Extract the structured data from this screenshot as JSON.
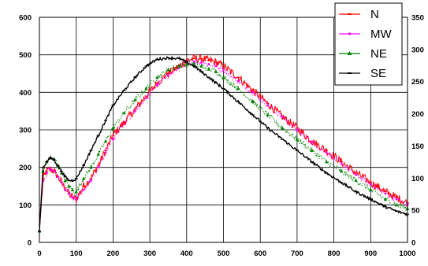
{
  "chart_data": {
    "type": "line",
    "title": "",
    "xlabel": "",
    "ylabel": "",
    "xlim": [
      0,
      1000
    ],
    "ylim": [
      0,
      600
    ],
    "y2lim": [
      0,
      350
    ],
    "grid": true,
    "legend_position": "top-right",
    "x_ticks": [
      "0",
      "100",
      "200",
      "300",
      "400",
      "500",
      "600",
      "700",
      "800",
      "900",
      "1000"
    ],
    "y_ticks": [
      "0",
      "100",
      "200",
      "300",
      "400",
      "500",
      "600"
    ],
    "y2_ticks": [
      "0",
      "50",
      "100",
      "150",
      "200",
      "250",
      "300",
      "350"
    ],
    "series": [
      {
        "name": "N",
        "color": "#ff0000",
        "marker": "dash",
        "x": [
          0,
          10,
          20,
          30,
          40,
          50,
          60,
          70,
          80,
          90,
          100,
          120,
          140,
          160,
          180,
          200,
          230,
          260,
          290,
          320,
          350,
          380,
          400,
          420,
          440,
          460,
          480,
          500,
          540,
          580,
          620,
          660,
          700,
          740,
          780,
          820,
          860,
          900,
          940,
          970,
          1000
        ],
        "y": [
          30,
          170,
          190,
          195,
          190,
          175,
          160,
          145,
          130,
          120,
          115,
          150,
          170,
          205,
          245,
          285,
          320,
          355,
          390,
          425,
          450,
          470,
          485,
          490,
          490,
          485,
          480,
          470,
          440,
          405,
          370,
          335,
          305,
          270,
          245,
          215,
          185,
          160,
          135,
          120,
          105
        ]
      },
      {
        "name": "MW",
        "color": "#ff00ff",
        "marker": "dot",
        "x": [
          0,
          10,
          20,
          30,
          40,
          50,
          60,
          70,
          80,
          90,
          100,
          120,
          140,
          160,
          180,
          200,
          230,
          260,
          290,
          320,
          350,
          380,
          400,
          420,
          440,
          460,
          480,
          500,
          540,
          580,
          620,
          660,
          700,
          740,
          780,
          820,
          860,
          900,
          940,
          970,
          1000
        ],
        "y": [
          30,
          165,
          185,
          195,
          190,
          175,
          160,
          140,
          130,
          120,
          115,
          140,
          165,
          200,
          240,
          275,
          315,
          350,
          385,
          420,
          445,
          465,
          478,
          482,
          480,
          475,
          470,
          460,
          430,
          400,
          365,
          335,
          300,
          268,
          240,
          210,
          180,
          155,
          130,
          115,
          100
        ]
      },
      {
        "name": "NE",
        "color": "#008000",
        "marker": "triangle",
        "x": [
          0,
          10,
          20,
          30,
          40,
          50,
          60,
          70,
          80,
          90,
          100,
          120,
          140,
          160,
          180,
          200,
          230,
          260,
          290,
          320,
          350,
          380,
          400,
          420,
          440,
          460,
          480,
          500,
          540,
          580,
          620,
          660,
          700,
          740,
          780,
          820,
          860,
          900,
          940,
          970,
          1000
        ],
        "y": [
          30,
          190,
          215,
          225,
          222,
          205,
          185,
          165,
          150,
          140,
          135,
          170,
          200,
          235,
          270,
          305,
          345,
          380,
          410,
          440,
          460,
          470,
          475,
          475,
          470,
          462,
          455,
          440,
          410,
          375,
          340,
          305,
          275,
          245,
          215,
          190,
          165,
          140,
          115,
          100,
          90
        ]
      },
      {
        "name": "SE",
        "color": "#000000",
        "marker": "dash",
        "x": [
          0,
          10,
          20,
          30,
          40,
          50,
          60,
          70,
          80,
          90,
          100,
          120,
          140,
          160,
          180,
          200,
          230,
          260,
          290,
          320,
          350,
          380,
          400,
          420,
          440,
          460,
          480,
          500,
          540,
          580,
          620,
          660,
          700,
          740,
          780,
          820,
          860,
          900,
          940,
          970,
          1000
        ],
        "y": [
          30,
          200,
          215,
          225,
          220,
          205,
          190,
          175,
          165,
          165,
          170,
          205,
          245,
          285,
          325,
          365,
          405,
          440,
          470,
          488,
          492,
          490,
          480,
          470,
          455,
          440,
          425,
          410,
          375,
          340,
          305,
          275,
          245,
          215,
          185,
          160,
          135,
          115,
          95,
          83,
          75
        ]
      }
    ]
  }
}
